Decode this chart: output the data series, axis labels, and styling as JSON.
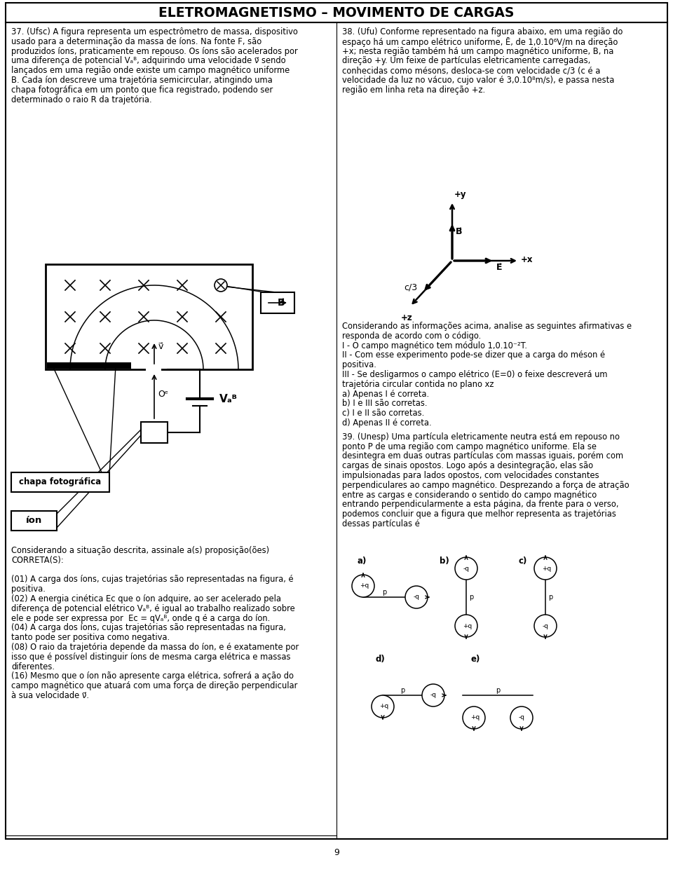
{
  "title": "ELETROMAGNETISMO – MOVIMENTO DE CARGAS",
  "bg_color": "#ffffff",
  "page_number": "9",
  "q37_lines": [
    "37. (Ufsc) A figura representa um espectrômetro de massa, dispositivo",
    "usado para a determinação da massa de íons. Na fonte F, são",
    "produzidos íons, praticamente em repouso. Os íons são acelerados por",
    "uma diferença de potencial Vₐᴮ, adquirindo uma velocidade ν⃗ sendo",
    "lançados em uma região onde existe um campo magnético uniforme",
    "B. Cada íon descreve uma trajetória semicircular, atingindo uma",
    "chapa fotográfica em um ponto que fica registrado, podendo ser",
    "determinado o raio R da trajetória."
  ],
  "q37_prop_lines": [
    "Considerando a situação descrita, assinale a(s) proposição(ões)",
    "CORRETA(S):",
    "",
    "(01) A carga dos íons, cujas trajetórias são representadas na figura, é",
    "positiva.",
    "(02) A energia cinética Eᴄ que o íon adquire, ao ser acelerado pela",
    "diferença de potencial elétrico Vₐᴮ, é igual ao trabalho realizado sobre",
    "ele e pode ser expressa por  Eᴄ = qVₐᴮ, onde q é a carga do íon.",
    "(04) A carga dos íons, cujas trajetórias são representadas na figura,",
    "tanto pode ser positiva como negativa.",
    "(08) O raio da trajetória depende da massa do íon, e é exatamente por",
    "isso que é possível distinguir íons de mesma carga elétrica e massas",
    "diferentes.",
    "(16) Mesmo que o íon não apresente carga elétrica, sofrerá a ação do",
    "campo magnético que atuará com uma força de direção perpendicular",
    "à sua velocidade ν⃗."
  ],
  "q38_lines": [
    "38. (Ufu) Conforme representado na figura abaixo, em uma região do",
    "espaço há um campo elétrico uniforme, Ē, de 1,0.10⁶V/m na direção",
    "+x; nesta região também há um campo magnético uniforme, B, na",
    "direção +y. Um feixe de partículas eletricamente carregadas,",
    "conhecidas como mésons, desloca-se com velocidade c/3 (c é a",
    "velocidade da luz no vácuo, cujo valor é 3,0.10⁸m/s), e passa nesta",
    "região em linha reta na direção +z."
  ],
  "q38_body_lines": [
    "Considerando as informações acima, analise as seguintes afirmativas e",
    "responda de acordo com o código.",
    "I - O campo magnético tem módulo 1,0.10⁻²T.",
    "II - Com esse experimento pode-se dizer que a carga do méson é",
    "positiva.",
    "III - Se desligarmos o campo elétrico (E=0) o feixe descreverá um",
    "trajetória circular contida no plano xz",
    "a) Apenas I é correta.",
    "b) I e III são corretas.",
    "c) I e II são corretas.",
    "d) Apenas II é correta."
  ],
  "q39_lines": [
    "39. (Unesp) Uma partícula eletricamente neutra está em repouso no",
    "ponto P de uma região com campo magnético uniforme. Ela se",
    "desintegra em duas outras partículas com massas iguais, porém com",
    "cargas de sinais opostos. Logo após a desintegração, elas são",
    "impulsionadas para lados opostos, com velocidades constantes",
    "perpendiculares ao campo magnético. Desprezando a força de atração",
    "entre as cargas e considerando o sentido do campo magnético",
    "entrando perpendicularmente a esta página, da frente para o verso,",
    "podemos concluir que a figura que melhor representa as trajetórias",
    "dessas partículas é"
  ]
}
